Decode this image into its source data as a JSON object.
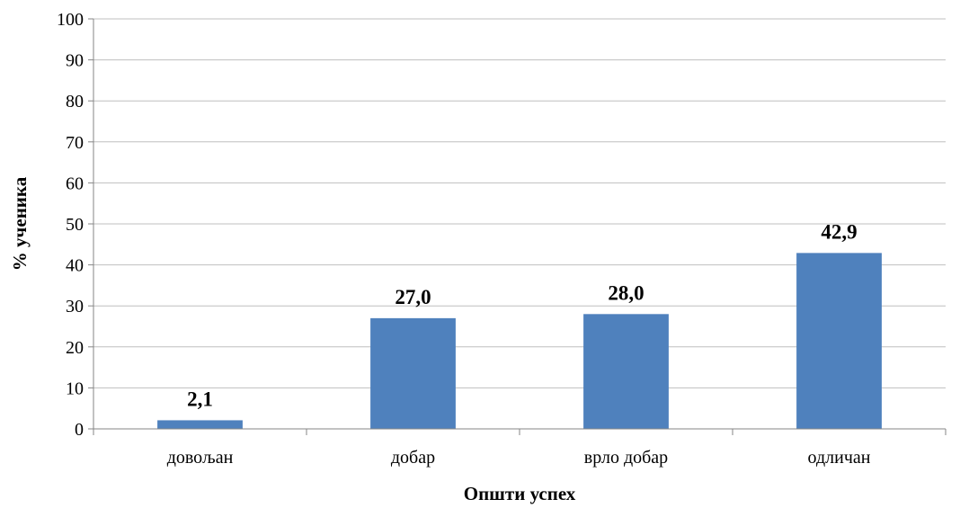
{
  "chart_data": {
    "type": "bar",
    "categories": [
      "довољан",
      "добар",
      "врло добар",
      "одличан"
    ],
    "values": [
      2.1,
      27.0,
      28.0,
      42.9
    ],
    "data_labels": [
      "2,1",
      "27,0",
      "28,0",
      "42,9"
    ],
    "xlabel": "Општи успех",
    "ylabel": "% ученика",
    "ylim": [
      0,
      100
    ],
    "yticks": [
      0,
      10,
      20,
      30,
      40,
      50,
      60,
      70,
      80,
      90,
      100
    ],
    "grid": true,
    "legend": "none",
    "bar_color": "#4f81bd",
    "grid_color": "#bfbfbf",
    "axis_color": "#868686"
  }
}
